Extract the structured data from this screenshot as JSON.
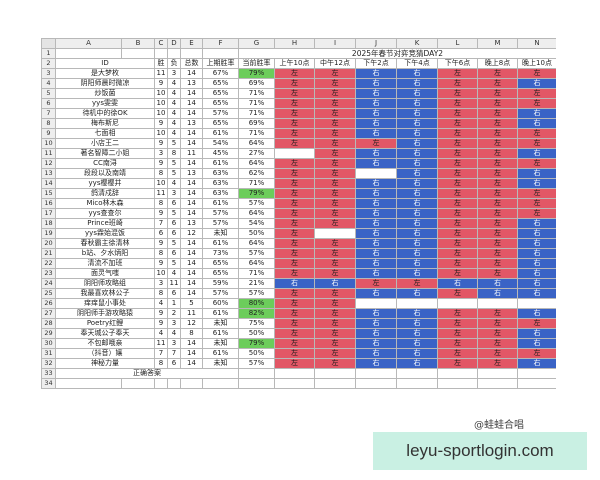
{
  "column_letters": [
    "A",
    "B",
    "C",
    "D",
    "E",
    "F",
    "G",
    "H",
    "I",
    "J",
    "K",
    "L",
    "M",
    "N"
  ],
  "sheet_title": "2025年春节对弈竞猜DAY2",
  "headers": {
    "id": "ID",
    "wins": "胜",
    "losses": "负",
    "total": "总数",
    "prev_winrate": "上期胜率",
    "curr_winrate": "当前胜率",
    "rounds": [
      "上午10点",
      "中午12点",
      "下午2点",
      "下午4点",
      "下午6点",
      "晚上8点",
      "晚上10点"
    ]
  },
  "rows": [
    {
      "id": "是大梦枚",
      "wins": "11",
      "losses": "3",
      "total": "14",
      "prev": "67%",
      "curr": "79%",
      "picks": [
        "左",
        "左",
        "右",
        "右",
        "左",
        "左",
        "左"
      ]
    },
    {
      "id": "阴阳师晨时微凉",
      "wins": "9",
      "losses": "4",
      "total": "13",
      "prev": "65%",
      "curr": "69%",
      "picks": [
        "左",
        "左",
        "右",
        "右",
        "左",
        "左",
        "右"
      ]
    },
    {
      "id": "炒饭菌",
      "wins": "10",
      "losses": "4",
      "total": "14",
      "prev": "65%",
      "curr": "71%",
      "picks": [
        "左",
        "左",
        "右",
        "右",
        "左",
        "左",
        "左"
      ]
    },
    {
      "id": "yys雯雯",
      "wins": "10",
      "losses": "4",
      "total": "14",
      "prev": "65%",
      "curr": "71%",
      "picks": [
        "左",
        "左",
        "右",
        "右",
        "左",
        "左",
        "左"
      ]
    },
    {
      "id": "待机中的徐OK",
      "wins": "10",
      "losses": "4",
      "total": "14",
      "prev": "57%",
      "curr": "71%",
      "picks": [
        "左",
        "左",
        "右",
        "右",
        "左",
        "左",
        "右"
      ]
    },
    {
      "id": "梅布斯尼",
      "wins": "9",
      "losses": "4",
      "total": "13",
      "prev": "65%",
      "curr": "69%",
      "picks": [
        "左",
        "左",
        "右",
        "右",
        "左",
        "左",
        "右"
      ]
    },
    {
      "id": "七面相",
      "wins": "10",
      "losses": "4",
      "total": "14",
      "prev": "61%",
      "curr": "71%",
      "picks": [
        "左",
        "左",
        "右",
        "右",
        "左",
        "左",
        "左"
      ]
    },
    {
      "id": "小店王二",
      "wins": "9",
      "losses": "5",
      "total": "14",
      "prev": "54%",
      "curr": "64%",
      "picks": [
        "左",
        "左",
        "左",
        "右",
        "左",
        "左",
        "左"
      ]
    },
    {
      "id": "著名智障二小姐",
      "wins": "3",
      "losses": "8",
      "total": "11",
      "prev": "45%",
      "curr": "27%",
      "picks": [
        "",
        "左",
        "右",
        "右",
        "左",
        "左",
        "右"
      ]
    },
    {
      "id": "CC南浔",
      "wins": "9",
      "losses": "5",
      "total": "14",
      "prev": "61%",
      "curr": "64%",
      "picks": [
        "左",
        "左",
        "右",
        "右",
        "左",
        "左",
        "左"
      ]
    },
    {
      "id": "段段以及南靖",
      "wins": "8",
      "losses": "5",
      "total": "13",
      "prev": "63%",
      "curr": "62%",
      "picks": [
        "左",
        "左",
        "",
        "右",
        "左",
        "左",
        "右"
      ]
    },
    {
      "id": "yys樱樱井",
      "wins": "10",
      "losses": "4",
      "total": "14",
      "prev": "63%",
      "curr": "71%",
      "picks": [
        "左",
        "左",
        "右",
        "右",
        "左",
        "左",
        "右"
      ]
    },
    {
      "id": "鸽清戍辞",
      "wins": "11",
      "losses": "3",
      "total": "14",
      "prev": "63%",
      "curr": "79%",
      "picks": [
        "左",
        "左",
        "右",
        "右",
        "左",
        "左",
        "左"
      ]
    },
    {
      "id": "Mico林木森",
      "wins": "8",
      "losses": "6",
      "total": "14",
      "prev": "61%",
      "curr": "57%",
      "picks": [
        "左",
        "左",
        "右",
        "右",
        "左",
        "左",
        "左"
      ]
    },
    {
      "id": "yys查查尔",
      "wins": "9",
      "losses": "5",
      "total": "14",
      "prev": "57%",
      "curr": "64%",
      "picks": [
        "左",
        "左",
        "右",
        "右",
        "左",
        "左",
        "左"
      ]
    },
    {
      "id": "Prince班崎",
      "wins": "7",
      "losses": "6",
      "total": "13",
      "prev": "57%",
      "curr": "54%",
      "picks": [
        "左",
        "左",
        "右",
        "右",
        "左",
        "左",
        "右"
      ]
    },
    {
      "id": "yys霖始混饭",
      "wins": "6",
      "losses": "6",
      "total": "12",
      "prev": "未知",
      "curr": "50%",
      "picks": [
        "左",
        "",
        "右",
        "右",
        "左",
        "左",
        "右"
      ]
    },
    {
      "id": "春秋霸主徐清林",
      "wins": "9",
      "losses": "5",
      "total": "14",
      "prev": "61%",
      "curr": "64%",
      "picks": [
        "左",
        "左",
        "右",
        "右",
        "左",
        "左",
        "右"
      ]
    },
    {
      "id": "b站、夕水炳阳",
      "wins": "8",
      "losses": "6",
      "total": "14",
      "prev": "73%",
      "curr": "57%",
      "picks": [
        "左",
        "左",
        "右",
        "右",
        "左",
        "左",
        "右"
      ]
    },
    {
      "id": "清流不加班",
      "wins": "9",
      "losses": "5",
      "total": "14",
      "prev": "65%",
      "curr": "64%",
      "picks": [
        "左",
        "左",
        "右",
        "右",
        "左",
        "左",
        "右"
      ]
    },
    {
      "id": "面灵气嗤",
      "wins": "10",
      "losses": "4",
      "total": "14",
      "prev": "65%",
      "curr": "71%",
      "picks": [
        "左",
        "左",
        "右",
        "右",
        "左",
        "左",
        "右"
      ]
    },
    {
      "id": "阴阳师攻略组",
      "wins": "3",
      "losses": "11",
      "total": "14",
      "prev": "59%",
      "curr": "21%",
      "picks": [
        "右",
        "右",
        "左",
        "左",
        "右",
        "右",
        "右"
      ]
    },
    {
      "id": "我最喜欢林公子",
      "wins": "8",
      "losses": "6",
      "total": "14",
      "prev": "57%",
      "curr": "57%",
      "picks": [
        "左",
        "左",
        "右",
        "右",
        "左",
        "右",
        "右"
      ]
    },
    {
      "id": "痒痒鼠小事处",
      "wins": "4",
      "losses": "1",
      "total": "5",
      "prev": "60%",
      "curr": "80%",
      "picks": [
        "左",
        "左",
        "",
        "",
        "",
        "",
        ""
      ]
    },
    {
      "id": "阴阳师手游攻略猿",
      "wins": "9",
      "losses": "2",
      "total": "11",
      "prev": "61%",
      "curr": "82%",
      "picks": [
        "左",
        "左",
        "右",
        "右",
        "左",
        "左",
        "右"
      ]
    },
    {
      "id": "Poetry红鲤",
      "wins": "9",
      "losses": "3",
      "total": "12",
      "prev": "未知",
      "curr": "75%",
      "picks": [
        "左",
        "左",
        "右",
        "右",
        "左",
        "左",
        "左"
      ]
    },
    {
      "id": "奉天城公子奉天",
      "wins": "4",
      "losses": "4",
      "total": "8",
      "prev": "61%",
      "curr": "50%",
      "picks": [
        "左",
        "左",
        "右",
        "右",
        "左",
        "左",
        "右"
      ]
    },
    {
      "id": "不包邮哦亲",
      "wins": "11",
      "losses": "3",
      "total": "14",
      "prev": "未知",
      "curr": "79%",
      "picks": [
        "左",
        "左",
        "右",
        "右",
        "左",
        "左",
        "右"
      ]
    },
    {
      "id": "（抖音）孃",
      "wins": "7",
      "losses": "7",
      "total": "14",
      "prev": "61%",
      "curr": "50%",
      "picks": [
        "左",
        "左",
        "右",
        "右",
        "左",
        "左",
        "左"
      ]
    },
    {
      "id": "神秘力量",
      "wins": "8",
      "losses": "6",
      "total": "14",
      "prev": "未知",
      "curr": "57%",
      "picks": [
        "左",
        "左",
        "右",
        "右",
        "左",
        "左",
        "右"
      ]
    }
  ],
  "answer_label": "正确答案",
  "watermark": "@蛙蛙合唱",
  "banner_text": "leyu-sportlogin.com",
  "colors": {
    "left_pick": "#e25766",
    "right_pick": "#3a63c6",
    "high_winrate": "#6ccd5b",
    "banner_bg": "#c9f0e3"
  }
}
